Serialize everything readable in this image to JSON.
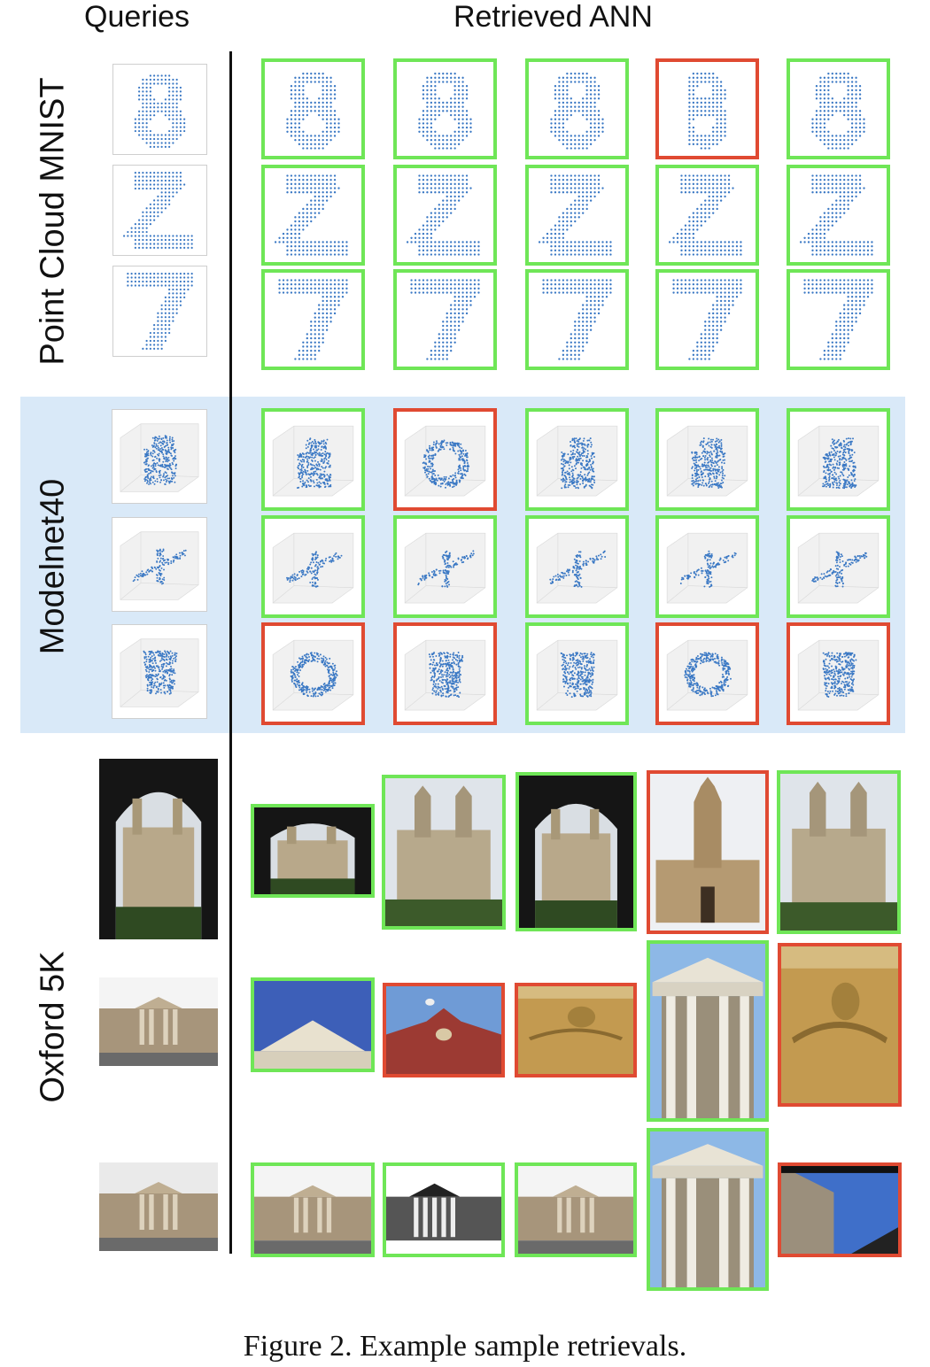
{
  "headers": {
    "queries": "Queries",
    "retrieved": "Retrieved ANN"
  },
  "sections": [
    {
      "label": "Point Cloud MNIST",
      "kind": "digits",
      "rows": [
        {
          "query": "8",
          "results": [
            {
              "shape": "8",
              "match": true
            },
            {
              "shape": "8",
              "match": true
            },
            {
              "shape": "8",
              "match": true
            },
            {
              "shape": "3",
              "match": false
            },
            {
              "shape": "8",
              "match": true
            }
          ]
        },
        {
          "query": "2",
          "results": [
            {
              "shape": "2",
              "match": true
            },
            {
              "shape": "2",
              "match": true
            },
            {
              "shape": "2",
              "match": true
            },
            {
              "shape": "2",
              "match": true
            },
            {
              "shape": "2",
              "match": true
            }
          ]
        },
        {
          "query": "7",
          "results": [
            {
              "shape": "7",
              "match": true
            },
            {
              "shape": "7",
              "match": true
            },
            {
              "shape": "7",
              "match": true
            },
            {
              "shape": "7",
              "match": true
            },
            {
              "shape": "7",
              "match": true
            }
          ]
        }
      ]
    },
    {
      "label": "Modelnet40",
      "kind": "points3d",
      "rows": [
        {
          "query": "bottle",
          "results": [
            {
              "shape": "bottle",
              "match": true
            },
            {
              "shape": "vase",
              "match": false
            },
            {
              "shape": "bottle",
              "match": true
            },
            {
              "shape": "bottle",
              "match": true
            },
            {
              "shape": "bottle",
              "match": true
            }
          ]
        },
        {
          "query": "airplane",
          "results": [
            {
              "shape": "airplane",
              "match": true
            },
            {
              "shape": "airplane",
              "match": true
            },
            {
              "shape": "airplane",
              "match": true
            },
            {
              "shape": "airplane",
              "match": true
            },
            {
              "shape": "airplane",
              "match": true
            }
          ]
        },
        {
          "query": "pot",
          "results": [
            {
              "shape": "bowl",
              "match": false
            },
            {
              "shape": "pot",
              "match": false
            },
            {
              "shape": "pot",
              "match": true
            },
            {
              "shape": "bowl",
              "match": false
            },
            {
              "shape": "pot",
              "match": false
            }
          ]
        }
      ]
    },
    {
      "label": "Oxford 5K",
      "kind": "photos",
      "rows": [
        {
          "query": "all-souls-arch",
          "results": [
            {
              "shape": "all-souls-arch",
              "match": true
            },
            {
              "shape": "all-souls-towers",
              "match": true
            },
            {
              "shape": "all-souls-arch",
              "match": true
            },
            {
              "shape": "tom-tower",
              "match": false
            },
            {
              "shape": "all-souls-towers",
              "match": true
            }
          ]
        },
        {
          "query": "ashmolean",
          "results": [
            {
              "shape": "pediment-sky",
              "match": true
            },
            {
              "shape": "red-brick",
              "match": false
            },
            {
              "shape": "ornate-facade",
              "match": false
            },
            {
              "shape": "portico",
              "match": true
            },
            {
              "shape": "ornate-facade",
              "match": false
            }
          ]
        },
        {
          "query": "ashmolean-columns",
          "results": [
            {
              "shape": "ashmolean",
              "match": true
            },
            {
              "shape": "ashmolean-bw",
              "match": true
            },
            {
              "shape": "ashmolean",
              "match": true
            },
            {
              "shape": "portico",
              "match": true
            },
            {
              "shape": "street-sky",
              "match": false
            }
          ]
        }
      ]
    }
  ],
  "colors": {
    "match": "#6fe657",
    "mismatch": "#e04a32",
    "band": "#d9e9f8",
    "points": "#3a78c4"
  },
  "caption": "Figure 2. Example sample retrievals."
}
